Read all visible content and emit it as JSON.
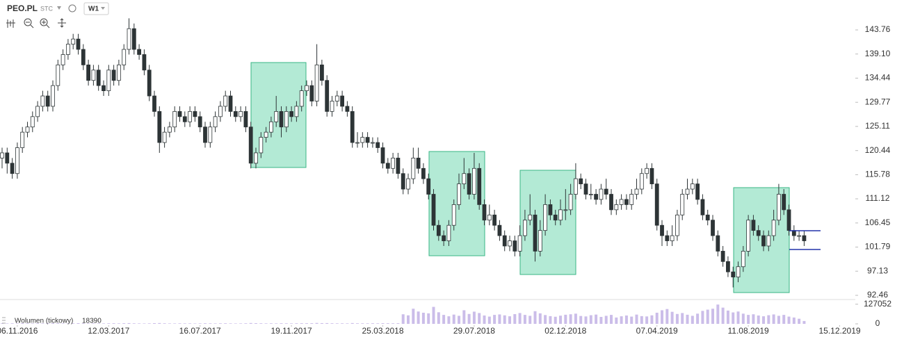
{
  "chart_data": {
    "type": "candlestick",
    "symbol": "PEO.PL",
    "symbol_type": "STC",
    "interval": "W1",
    "volume_label": "Wolumen (tickowy)",
    "up_color": "#ffffff",
    "down_color": "#2d3436",
    "volume_color": "#cbbde9",
    "ylim": [
      91.79,
      149.54
    ],
    "yticks": [
      143.76,
      {
        "value": 139.1,
        "label": "139.10"
      },
      134.44,
      129.77,
      125.11,
      120.44,
      115.78,
      111.12,
      106.45,
      101.79,
      97.13,
      92.46
    ],
    "xlim": [
      -0.41,
      168.08
    ],
    "xticks": [
      {
        "value": 3,
        "label": "06.11.2016"
      },
      {
        "value": 21,
        "label": "12.03.2017"
      },
      {
        "value": 39,
        "label": "16.07.2017"
      },
      {
        "value": 57,
        "label": "19.11.2017"
      },
      {
        "value": 75,
        "label": "25.03.2018"
      },
      {
        "value": 93,
        "label": "29.07.2018"
      },
      {
        "value": 111,
        "label": "02.12.2018"
      },
      {
        "value": 129,
        "label": "07.04.2019"
      },
      {
        "value": 147,
        "label": "11.08.2019"
      },
      {
        "value": 165,
        "label": "15.12.2019"
      }
    ],
    "vlim": [
      0,
      135000
    ],
    "vticks": [
      127052,
      0
    ],
    "candles": [
      [
        119,
        121,
        117,
        120
      ],
      [
        120,
        121,
        116,
        118
      ],
      [
        118,
        119,
        115,
        116
      ],
      [
        116,
        122,
        115,
        121
      ],
      [
        121,
        125,
        120,
        124
      ],
      [
        124,
        126,
        123,
        125
      ],
      [
        125,
        128,
        124,
        127
      ],
      [
        127,
        130,
        126,
        129
      ],
      [
        129,
        132,
        128,
        131
      ],
      [
        131,
        132,
        128,
        129
      ],
      [
        129,
        134,
        128,
        133
      ],
      [
        133,
        138,
        132,
        137
      ],
      [
        137,
        140,
        136,
        139
      ],
      [
        139,
        142,
        138,
        141
      ],
      [
        141,
        143,
        140,
        142
      ],
      [
        142,
        143,
        139,
        140
      ],
      [
        140,
        141,
        136,
        137
      ],
      [
        137,
        138,
        133,
        134
      ],
      [
        134,
        137,
        133,
        136
      ],
      [
        136,
        137,
        132,
        133
      ],
      [
        133,
        134,
        131,
        132
      ],
      [
        132,
        137,
        131,
        136
      ],
      [
        136,
        137,
        133,
        134
      ],
      [
        134,
        138,
        133,
        137
      ],
      [
        137,
        141,
        136,
        140
      ],
      [
        140,
        146,
        139,
        144
      ],
      [
        144,
        145,
        139,
        140
      ],
      [
        140,
        141,
        138,
        139
      ],
      [
        139,
        140,
        135,
        136
      ],
      [
        136,
        137,
        130,
        131
      ],
      [
        131,
        132,
        127,
        128
      ],
      [
        128,
        129,
        120,
        122
      ],
      [
        122,
        125,
        121,
        124
      ],
      [
        124,
        126,
        123,
        125
      ],
      [
        125,
        129,
        124,
        128
      ],
      [
        128,
        129,
        126,
        127
      ],
      [
        127,
        128,
        125,
        126
      ],
      [
        126,
        129,
        125,
        128
      ],
      [
        128,
        129,
        126,
        127
      ],
      [
        127,
        128,
        124,
        125
      ],
      [
        125,
        126,
        121,
        122
      ],
      [
        122,
        126,
        121,
        125
      ],
      [
        125,
        128,
        124,
        127
      ],
      [
        127,
        130,
        126,
        129
      ],
      [
        129,
        132,
        128,
        131
      ],
      [
        131,
        132,
        127,
        128
      ],
      [
        128,
        129,
        126,
        127
      ],
      [
        127,
        129,
        126,
        128
      ],
      [
        128,
        129,
        124,
        125
      ],
      [
        125,
        126,
        117,
        118
      ],
      [
        118,
        121,
        117,
        120
      ],
      [
        120,
        124,
        119,
        123
      ],
      [
        123,
        125,
        122,
        124
      ],
      [
        124,
        127,
        123,
        126
      ],
      [
        126,
        131,
        125,
        128
      ],
      [
        128,
        129,
        123,
        125
      ],
      [
        125,
        129,
        124,
        128
      ],
      [
        128,
        129,
        126,
        127
      ],
      [
        127,
        130,
        126,
        129
      ],
      [
        129,
        133,
        128,
        132
      ],
      [
        132,
        134,
        131,
        133
      ],
      [
        133,
        134,
        129,
        130
      ],
      [
        130,
        141,
        129,
        137
      ],
      [
        137,
        138,
        133,
        134
      ],
      [
        134,
        135,
        127,
        128
      ],
      [
        128,
        131,
        127,
        130
      ],
      [
        130,
        132,
        129,
        131
      ],
      [
        131,
        132,
        128,
        129
      ],
      [
        129,
        130,
        127,
        128
      ],
      [
        128,
        129,
        121,
        122
      ],
      [
        122,
        124,
        121,
        122
      ],
      [
        122,
        124,
        121,
        123
      ],
      [
        123,
        124,
        121,
        122
      ],
      [
        122,
        123,
        121,
        122
      ],
      [
        122,
        123,
        120,
        121
      ],
      [
        121,
        122,
        117,
        118
      ],
      [
        118,
        119,
        116,
        117
      ],
      [
        117,
        120,
        116,
        119
      ],
      [
        119,
        120,
        115,
        116
      ],
      [
        116,
        117,
        112,
        113
      ],
      [
        113,
        116,
        112,
        115
      ],
      [
        115,
        121,
        114,
        119
      ],
      [
        119,
        121,
        116,
        117
      ],
      [
        117,
        118,
        114,
        115
      ],
      [
        115,
        116,
        111,
        112
      ],
      [
        112,
        113,
        105,
        106
      ],
      [
        106,
        107,
        103,
        104
      ],
      [
        104,
        105,
        102,
        103
      ],
      [
        103,
        107,
        102,
        106
      ],
      [
        106,
        111,
        105,
        110
      ],
      [
        110,
        116,
        109,
        114
      ],
      [
        114,
        119,
        113,
        116
      ],
      [
        116,
        117,
        111,
        112
      ],
      [
        112,
        120,
        111,
        117
      ],
      [
        117,
        118,
        109,
        110
      ],
      [
        110,
        111,
        106,
        107
      ],
      [
        107,
        110,
        106,
        108
      ],
      [
        108,
        109,
        105,
        106
      ],
      [
        106,
        107,
        103,
        104
      ],
      [
        104,
        105,
        101,
        102
      ],
      [
        102,
        104,
        101,
        103
      ],
      [
        103,
        104,
        100,
        101
      ],
      [
        101,
        106,
        100,
        104
      ],
      [
        104,
        109,
        103,
        107
      ],
      [
        107,
        112,
        106,
        108
      ],
      [
        108,
        109,
        99,
        101
      ],
      [
        101,
        107,
        100,
        105
      ],
      [
        105,
        112,
        104,
        110
      ],
      [
        110,
        111,
        107,
        108
      ],
      [
        108,
        109,
        106,
        107
      ],
      [
        107,
        111,
        106,
        109
      ],
      [
        109,
        113,
        107,
        109
      ],
      [
        109,
        114,
        108,
        112
      ],
      [
        112,
        118,
        111,
        115
      ],
      [
        115,
        116,
        113,
        114
      ],
      [
        114,
        115,
        111,
        112
      ],
      [
        112,
        114,
        111,
        112
      ],
      [
        112,
        113,
        110,
        111
      ],
      [
        111,
        114,
        110,
        113
      ],
      [
        113,
        115,
        111,
        112
      ],
      [
        112,
        113,
        108,
        109
      ],
      [
        109,
        111,
        108,
        110
      ],
      [
        110,
        112,
        109,
        111
      ],
      [
        111,
        112,
        109,
        110
      ],
      [
        110,
        113,
        109,
        112
      ],
      [
        112,
        115,
        111,
        113
      ],
      [
        113,
        117,
        112,
        116
      ],
      [
        116,
        118,
        115,
        117
      ],
      [
        117,
        118,
        113,
        114
      ],
      [
        114,
        115,
        105,
        106
      ],
      [
        106,
        107,
        102,
        104
      ],
      [
        104,
        105,
        102,
        103
      ],
      [
        103,
        106,
        102,
        104
      ],
      [
        104,
        109,
        103,
        108
      ],
      [
        108,
        113,
        107,
        112
      ],
      [
        112,
        115,
        111,
        113
      ],
      [
        113,
        115,
        112,
        114
      ],
      [
        114,
        115,
        110,
        111
      ],
      [
        111,
        112,
        107,
        108
      ],
      [
        108,
        109,
        106,
        107
      ],
      [
        107,
        108,
        103,
        104
      ],
      [
        104,
        105,
        100,
        101
      ],
      [
        101,
        102,
        98,
        99
      ],
      [
        99,
        100,
        96,
        97
      ],
      [
        97,
        98,
        94,
        96
      ],
      [
        96,
        99,
        95,
        98
      ],
      [
        98,
        102,
        97,
        101
      ],
      [
        101,
        108,
        100,
        107
      ],
      [
        107,
        108,
        104,
        105
      ],
      [
        105,
        106,
        103,
        104
      ],
      [
        104,
        105,
        101,
        102
      ],
      [
        102,
        105,
        101,
        104
      ],
      [
        104,
        109,
        103,
        107
      ],
      [
        107,
        114,
        106,
        112
      ],
      [
        112,
        113,
        108,
        109
      ],
      [
        109,
        110,
        104,
        105
      ],
      [
        105,
        106,
        103,
        104
      ],
      [
        104,
        105,
        103,
        104
      ],
      [
        104,
        105,
        102,
        103
      ]
    ],
    "volume": [
      3100,
      2800,
      3500,
      2900,
      4100,
      3300,
      2700,
      3600,
      3000,
      3800,
      4200,
      3900,
      3100,
      2600,
      3400,
      4500,
      3700,
      2900,
      3300,
      3100,
      2800,
      3600,
      3900,
      3200,
      4000,
      4800,
      3500,
      3100,
      2700,
      3300,
      4400,
      5200,
      3600,
      3000,
      2800,
      3400,
      2900,
      3200,
      2500,
      3100,
      3700,
      3300,
      2900,
      3500,
      3800,
      3100,
      2700,
      3000,
      3600,
      5400,
      4300,
      3700,
      3200,
      3500,
      3000,
      3900,
      3400,
      3100,
      3600,
      4100,
      3900,
      4200,
      5800,
      4600,
      4900,
      3800,
      3300,
      3500,
      3200,
      5100,
      3600,
      3400,
      3200,
      3800,
      3300,
      4200,
      3900,
      3500,
      4100,
      62000,
      55000,
      98000,
      80000,
      72000,
      68000,
      110000,
      75000,
      58000,
      49000,
      60000,
      52000,
      88000,
      64000,
      79000,
      70000,
      54000,
      47000,
      58000,
      61000,
      55000,
      49000,
      63000,
      70000,
      58000,
      52000,
      82000,
      68000,
      57000,
      50000,
      46000,
      53000,
      59000,
      62000,
      66000,
      51000,
      48000,
      56000,
      60000,
      45000,
      52000,
      58000,
      41000,
      49000,
      54000,
      47000,
      60000,
      50000,
      48000,
      55000,
      72000,
      88000,
      96000,
      78000,
      64000,
      70000,
      59000,
      52000,
      66000,
      84000,
      92000,
      98000,
      125000,
      105000,
      86000,
      74000,
      80000,
      66000,
      58000,
      62000,
      54000,
      49000,
      56000,
      61000,
      52000,
      58000,
      47000,
      41000,
      33000,
      18390
    ]
  }
}
